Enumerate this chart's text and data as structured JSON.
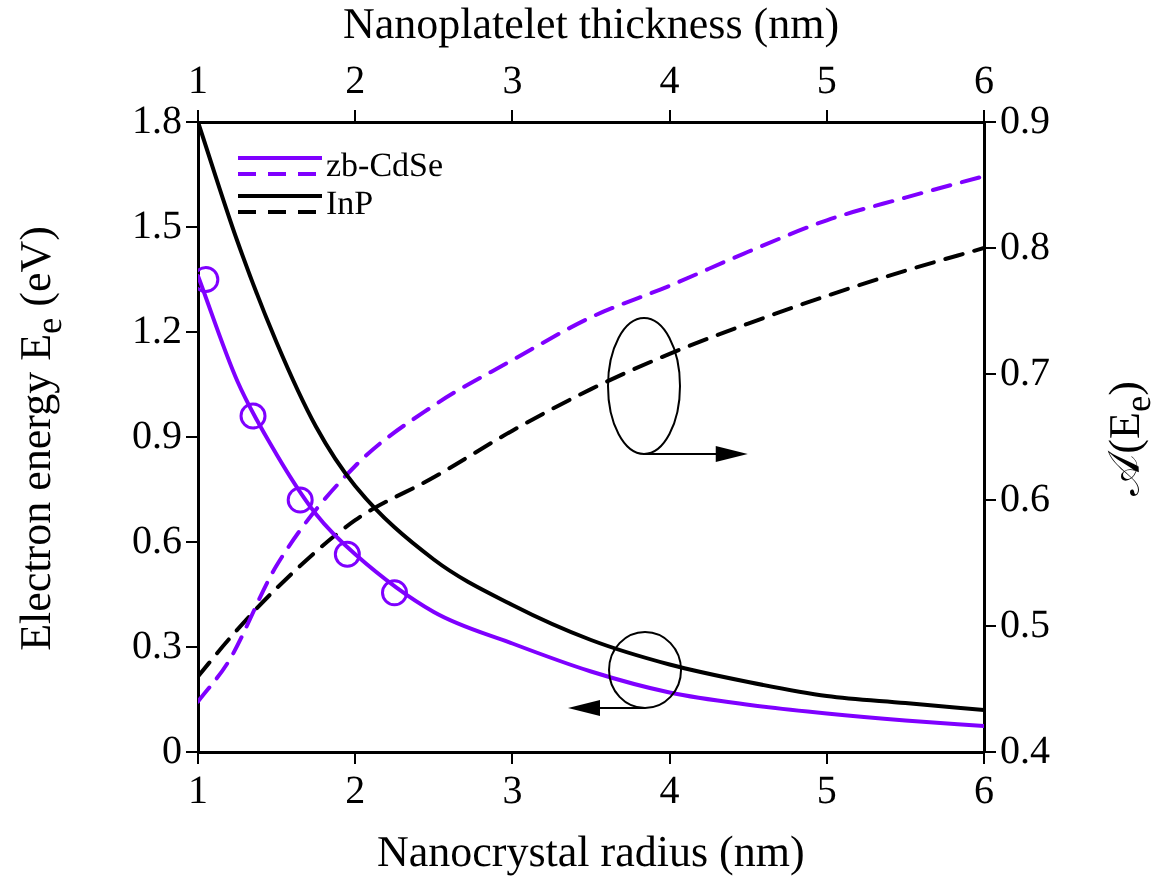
{
  "chart_data": {
    "type": "line",
    "xlabel": "Nanocrystal radius (nm)",
    "x2label": "Nanoplatelet thickness (nm)",
    "ylabel": "Electron energy E$_{e}$ (eV)",
    "y2label": "𝒜(E$_{e}$)",
    "xlim": [
      1,
      6
    ],
    "xticks": [
      1,
      2,
      3,
      4,
      5,
      6
    ],
    "x2lim": [
      1,
      6
    ],
    "x2ticks": [
      1,
      2,
      3,
      4,
      5,
      6
    ],
    "ylim": [
      0,
      1.8
    ],
    "yticks": [
      0,
      0.3,
      0.6,
      0.9,
      1.2,
      1.5,
      1.8
    ],
    "y2lim": [
      0.4,
      0.9
    ],
    "y2ticks": [
      0.4,
      0.5,
      0.6,
      0.7,
      0.8,
      0.9
    ],
    "legend": "top left",
    "series": [
      {
        "name": "zb-CdSe",
        "color": "#7f00ff",
        "line_style": "solid",
        "marker": "none",
        "x": [
          1,
          1.25,
          1.5,
          1.75,
          2,
          2.5,
          3,
          3.5,
          4,
          4.5,
          5,
          5.5,
          6
        ],
        "values": [
          1.36,
          1.06,
          0.85,
          0.68,
          0.565,
          0.4,
          0.31,
          0.23,
          0.17,
          0.135,
          0.11,
          0.09,
          0.074
        ]
      },
      {
        "name": "InP",
        "color": "#000000",
        "line_style": "solid",
        "marker": "none",
        "x": [
          1,
          1.25,
          1.5,
          1.75,
          2,
          2.5,
          3,
          3.5,
          4,
          4.5,
          5,
          5.5,
          6
        ],
        "values": [
          1.8,
          1.46,
          1.17,
          0.93,
          0.76,
          0.55,
          0.42,
          0.32,
          0.25,
          0.2,
          0.16,
          0.14,
          0.12
        ]
      },
      {
        "type": "scatter",
        "color": "#7f00ff",
        "marker": "circle",
        "x": [
          1.05,
          1.35,
          1.65,
          1.95,
          2.25
        ],
        "values": [
          1.35,
          0.96,
          0.72,
          0.565,
          0.455
        ]
      },
      {
        "color": "#7f00ff",
        "line_style": "dashed",
        "marker": "none",
        "axis": "y2",
        "x": [
          1,
          1.2,
          1.5,
          2,
          2.5,
          3,
          3.5,
          4,
          4.5,
          5,
          5.5,
          6
        ],
        "values": [
          0.44,
          0.473,
          0.548,
          0.627,
          0.675,
          0.711,
          0.745,
          0.77,
          0.797,
          0.822,
          0.84,
          0.857
        ]
      },
      {
        "color": "#000000",
        "line_style": "dashed",
        "marker": "none",
        "axis": "y2",
        "x": [
          1,
          1.2,
          1.5,
          2,
          2.5,
          3,
          3.5,
          4,
          4.5,
          5,
          5.5,
          6
        ],
        "values": [
          0.46,
          0.49,
          0.53,
          0.584,
          0.618,
          0.655,
          0.688,
          0.716,
          0.74,
          0.762,
          0.782,
          0.8
        ]
      }
    ]
  }
}
